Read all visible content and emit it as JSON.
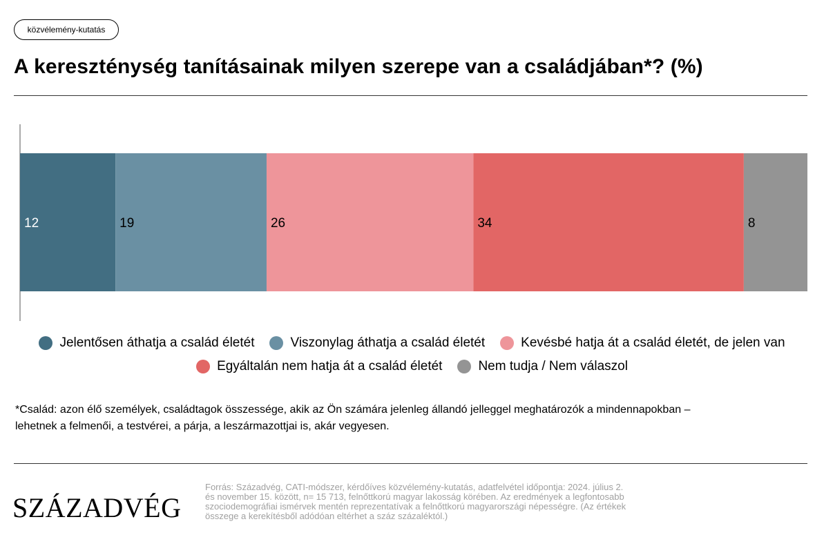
{
  "tag": "közvélemény-kutatás",
  "title": "A kereszténység tanításainak milyen szerepe van a családjában*? (%)",
  "chart_data": {
    "type": "bar",
    "orientation": "horizontal-stacked",
    "categories": [
      ""
    ],
    "series": [
      {
        "name": "Jelentősen áthatja a család életét",
        "values": [
          12
        ],
        "color": "#426e82",
        "label_color": "#ffffff"
      },
      {
        "name": "Viszonylag áthatja a család életét",
        "values": [
          19
        ],
        "color": "#6a90a3",
        "label_color": "#000000"
      },
      {
        "name": "Kevésbé hatja át a család életét, de jelen van",
        "values": [
          26
        ],
        "color": "#ee959a",
        "label_color": "#000000"
      },
      {
        "name": "Egyáltalán nem hatja át a család életét",
        "values": [
          34
        ],
        "color": "#e26665",
        "label_color": "#000000"
      },
      {
        "name": "Nem tudja / Nem válaszol",
        "values": [
          8
        ],
        "color": "#949494",
        "label_color": "#000000"
      }
    ],
    "title": "A kereszténység tanításainak milyen szerepe van a családjában*? (%)",
    "xlabel": "",
    "ylabel": "",
    "xlim": [
      0,
      99
    ],
    "grid": false,
    "legend": "bottom"
  },
  "legend_rows": [
    [
      0,
      1,
      2
    ],
    [
      3,
      4
    ]
  ],
  "footnote_line1": "*Család: azon élő személyek, családtagok összessége, akik az Ön számára jelenleg állandó jelleggel meghatározók a mindennapokban –",
  "footnote_line2": "lehetnek a felmenői, a testvérei, a párja, a leszármazottjai is, akár vegyesen.",
  "logo": "SZÁZADVÉG",
  "source_line1": "Forrás: Századvég, CATI-módszer, kérdőíves közvélemény-kutatás, adatfelvétel időpontja: 2024. július 2.",
  "source_line2": "és november 15. között, n= 15 713, felnőttkorú magyar lakosság körében. Az eredmények a legfontosabb",
  "source_line3": "szociodemográfiai ismérvek mentén reprezentatívak a felnőttkorú magyarországi népességre. (Az értékek",
  "source_line4": "összege a kerekítésből adódóan eltérhet a száz százaléktól.)"
}
